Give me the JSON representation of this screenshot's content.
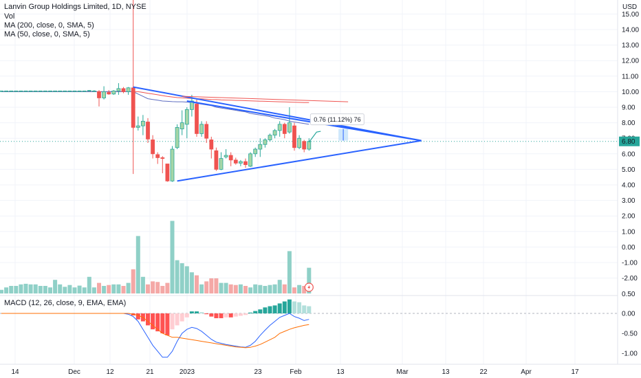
{
  "legend": {
    "title": "Lanvin Group Holdings Limited, 1D, NYSE",
    "vol": "Vol",
    "ma200": "MA (200, close, 0, SMA, 5)",
    "ma50": "MA (50, close, 0, SMA, 5)",
    "macd": "MACD (12, 26, close, 9, EMA, EMA)"
  },
  "price_axis": {
    "currency": "USD",
    "ticks": [
      "15.00",
      "14.00",
      "13.00",
      "12.00",
      "11.00",
      "10.00",
      "9.00",
      "8.00",
      "7.00",
      "6.00",
      "5.00",
      "4.00",
      "3.00",
      "2.00",
      "1.00",
      "0.00",
      "-1.00",
      "-2.00"
    ],
    "last_price": "6.80",
    "last_price_color": "#26a69a"
  },
  "volume_axis_edge_label": "0.50",
  "macd_axis": {
    "ticks": [
      "0.00",
      "-0.50",
      "-1.00"
    ]
  },
  "time_axis": {
    "labels": [
      "14",
      "Dec",
      "12",
      "21",
      "2023",
      "23",
      "Feb",
      "13",
      "Mar",
      "13",
      "22",
      "Apr",
      "17"
    ]
  },
  "measure_label": "0.76 (11.12%) 76",
  "colors": {
    "up": "#26a69a",
    "down": "#ef5350",
    "trendline": "#2962ff",
    "ma200": "#ef5350",
    "ma50": "#5c6bc0",
    "macd_line": "#2962ff",
    "signal_line": "#ff6d00"
  },
  "icons": {
    "flash_event": "lightning-icon"
  },
  "chart_data": {
    "type": "candlestick",
    "ylim": [
      -2,
      15
    ],
    "candles": [
      {
        "o": 10.05,
        "h": 10.05,
        "l": 10.0,
        "c": 10.05
      },
      {
        "o": 10.05,
        "h": 10.05,
        "l": 10.0,
        "c": 10.05
      },
      {
        "o": 10.05,
        "h": 10.05,
        "l": 10.0,
        "c": 10.05
      },
      {
        "o": 10.05,
        "h": 10.05,
        "l": 10.0,
        "c": 10.05
      },
      {
        "o": 10.05,
        "h": 10.05,
        "l": 10.0,
        "c": 10.05
      },
      {
        "o": 10.05,
        "h": 10.05,
        "l": 10.0,
        "c": 10.05
      },
      {
        "o": 10.05,
        "h": 10.05,
        "l": 10.0,
        "c": 10.05
      },
      {
        "o": 10.05,
        "h": 10.05,
        "l": 10.0,
        "c": 10.05
      },
      {
        "o": 10.05,
        "h": 10.05,
        "l": 10.0,
        "c": 10.05
      },
      {
        "o": 10.05,
        "h": 10.05,
        "l": 10.0,
        "c": 10.05
      },
      {
        "o": 10.05,
        "h": 10.05,
        "l": 10.0,
        "c": 10.05
      },
      {
        "o": 10.05,
        "h": 10.05,
        "l": 10.0,
        "c": 10.05
      },
      {
        "o": 10.05,
        "h": 10.05,
        "l": 10.0,
        "c": 10.05
      },
      {
        "o": 10.05,
        "h": 10.05,
        "l": 10.0,
        "c": 10.05
      },
      {
        "o": 10.05,
        "h": 10.05,
        "l": 10.0,
        "c": 10.05
      },
      {
        "o": 10.05,
        "h": 10.05,
        "l": 10.0,
        "c": 10.05
      },
      {
        "o": 10.05,
        "h": 10.05,
        "l": 10.0,
        "c": 10.05
      },
      {
        "o": 10.05,
        "h": 10.05,
        "l": 10.0,
        "c": 10.05
      },
      {
        "o": 10.05,
        "h": 10.1,
        "l": 10.0,
        "c": 10.08
      },
      {
        "o": 10.05,
        "h": 10.1,
        "l": 10.0,
        "c": 10.05
      },
      {
        "o": 10.0,
        "h": 10.1,
        "l": 9.05,
        "c": 9.6
      },
      {
        "o": 9.6,
        "h": 10.35,
        "l": 9.5,
        "c": 10.0
      },
      {
        "o": 9.95,
        "h": 10.1,
        "l": 9.8,
        "c": 9.85
      },
      {
        "o": 9.85,
        "h": 10.1,
        "l": 9.8,
        "c": 10.05
      },
      {
        "o": 10.05,
        "h": 10.55,
        "l": 9.8,
        "c": 10.2
      },
      {
        "o": 10.2,
        "h": 10.3,
        "l": 9.9,
        "c": 10.0
      },
      {
        "o": 10.0,
        "h": 10.3,
        "l": 9.8,
        "c": 10.25
      },
      {
        "o": 10.25,
        "h": 10.3,
        "l": 7.6,
        "c": 7.7
      },
      {
        "o": 7.7,
        "h": 8.4,
        "l": 7.5,
        "c": 7.8
      },
      {
        "o": 7.8,
        "h": 8.5,
        "l": 7.2,
        "c": 8.1
      },
      {
        "o": 8.05,
        "h": 8.3,
        "l": 6.7,
        "c": 6.95
      },
      {
        "o": 6.9,
        "h": 7.2,
        "l": 5.7,
        "c": 6.0
      },
      {
        "o": 5.95,
        "h": 6.1,
        "l": 5.35,
        "c": 5.75
      },
      {
        "o": 5.75,
        "h": 5.85,
        "l": 4.75,
        "c": 5.7
      },
      {
        "o": 5.35,
        "h": 5.35,
        "l": 4.2,
        "c": 4.25
      },
      {
        "o": 4.25,
        "h": 6.5,
        "l": 4.2,
        "c": 6.3
      },
      {
        "o": 6.4,
        "h": 7.9,
        "l": 6.3,
        "c": 7.7
      },
      {
        "o": 7.6,
        "h": 8.8,
        "l": 7.2,
        "c": 8.0
      },
      {
        "o": 7.9,
        "h": 9.0,
        "l": 7.0,
        "c": 8.85
      },
      {
        "o": 8.85,
        "h": 9.8,
        "l": 8.4,
        "c": 9.4
      },
      {
        "o": 9.2,
        "h": 9.5,
        "l": 7.1,
        "c": 7.3
      },
      {
        "o": 7.3,
        "h": 8.1,
        "l": 7.1,
        "c": 7.9
      },
      {
        "o": 7.9,
        "h": 8.1,
        "l": 6.7,
        "c": 7.0
      },
      {
        "o": 6.9,
        "h": 7.1,
        "l": 5.7,
        "c": 6.3
      },
      {
        "o": 6.2,
        "h": 6.4,
        "l": 4.9,
        "c": 5.0
      },
      {
        "o": 5.0,
        "h": 6.1,
        "l": 4.95,
        "c": 5.7
      },
      {
        "o": 5.8,
        "h": 6.3,
        "l": 5.7,
        "c": 5.9
      },
      {
        "o": 5.9,
        "h": 6.1,
        "l": 5.2,
        "c": 5.6
      },
      {
        "o": 5.6,
        "h": 5.75,
        "l": 5.3,
        "c": 5.4
      },
      {
        "o": 5.4,
        "h": 5.6,
        "l": 5.2,
        "c": 5.5
      },
      {
        "o": 5.5,
        "h": 5.7,
        "l": 5.1,
        "c": 5.3
      },
      {
        "o": 5.2,
        "h": 6.1,
        "l": 5.15,
        "c": 6.0
      },
      {
        "o": 6.0,
        "h": 6.4,
        "l": 5.8,
        "c": 6.3
      },
      {
        "o": 6.3,
        "h": 7.0,
        "l": 5.8,
        "c": 6.6
      },
      {
        "o": 6.6,
        "h": 7.0,
        "l": 6.4,
        "c": 6.9
      },
      {
        "o": 6.9,
        "h": 7.3,
        "l": 6.8,
        "c": 7.2
      },
      {
        "o": 7.2,
        "h": 7.6,
        "l": 7.0,
        "c": 7.5
      },
      {
        "o": 7.5,
        "h": 8.1,
        "l": 7.1,
        "c": 7.9
      },
      {
        "o": 7.9,
        "h": 8.0,
        "l": 7.0,
        "c": 7.3
      },
      {
        "o": 7.4,
        "h": 9.0,
        "l": 7.3,
        "c": 8.0
      },
      {
        "o": 7.8,
        "h": 8.0,
        "l": 6.2,
        "c": 6.4
      },
      {
        "o": 6.4,
        "h": 7.2,
        "l": 6.3,
        "c": 7.0
      },
      {
        "o": 6.8,
        "h": 6.9,
        "l": 6.1,
        "c": 6.3
      },
      {
        "o": 6.3,
        "h": 7.0,
        "l": 6.2,
        "c": 6.8
      }
    ],
    "volume": [
      0.12,
      0.2,
      0.25,
      0.25,
      0.3,
      0.32,
      0.3,
      0.3,
      0.25,
      0.25,
      0.2,
      0.45,
      0.3,
      0.22,
      0.28,
      0.2,
      0.26,
      0.2,
      0.55,
      0.2,
      0.35,
      0.25,
      0.28,
      0.3,
      0.3,
      0.25,
      0.35,
      0.8,
      1.9,
      0.55,
      0.3,
      0.4,
      0.38,
      0.25,
      0.35,
      2.4,
      1.1,
      1.0,
      0.9,
      0.7,
      0.6,
      0.3,
      0.4,
      0.5,
      0.5,
      0.35,
      0.35,
      0.3,
      0.28,
      0.3,
      0.25,
      0.2,
      0.3,
      0.28,
      0.25,
      0.28,
      0.3,
      0.45,
      0.3,
      1.4,
      0.2,
      0.28,
      0.25,
      0.85
    ],
    "ma200": [
      10.0,
      10.0,
      10.0,
      10.0,
      10.0,
      10.0,
      10.0,
      10.0,
      10.0,
      10.0,
      10.0,
      10.0,
      10.0,
      10.0,
      10.0,
      10.0,
      10.0,
      10.0,
      10.0,
      10.0,
      10.0,
      10.0,
      10.0,
      10.0,
      10.0,
      10.0,
      10.0,
      10.0,
      10.0,
      9.95,
      9.9,
      9.85,
      9.8,
      9.75,
      9.7,
      9.66,
      9.62,
      9.6,
      9.58,
      9.56,
      9.55,
      9.54,
      9.52,
      9.5,
      9.49,
      9.47,
      9.46,
      9.45,
      9.44,
      9.43,
      9.42,
      9.41,
      9.4,
      9.39,
      9.38,
      9.37,
      9.36,
      9.35,
      9.34,
      9.33,
      9.32,
      9.31,
      9.3,
      9.3
    ],
    "ma50": [
      10.0,
      10.0,
      10.0,
      10.0,
      10.0,
      10.0,
      10.0,
      10.0,
      10.0,
      10.0,
      10.0,
      10.0,
      10.0,
      10.0,
      10.0,
      10.0,
      10.0,
      10.0,
      10.0,
      10.0,
      10.0,
      10.0,
      10.0,
      10.0,
      10.0,
      10.0,
      10.0,
      10.0,
      9.85,
      9.7,
      9.55,
      9.5,
      9.45,
      9.4,
      9.38,
      9.36,
      9.35,
      9.35,
      9.33,
      9.3,
      9.25,
      9.2,
      9.15,
      9.1,
      9.0,
      8.95,
      8.9,
      8.85,
      8.8,
      8.75,
      8.7,
      8.6,
      8.55,
      8.5,
      8.45,
      8.4,
      8.3,
      8.25,
      8.2,
      8.1,
      8.05,
      8.0,
      7.95,
      7.9
    ],
    "macd_hist": [
      0,
      0,
      0,
      0,
      0,
      0,
      0,
      0,
      0,
      0,
      0,
      0,
      0,
      0,
      0,
      0,
      0,
      0,
      0,
      0,
      0,
      0,
      0,
      0,
      0,
      0,
      0,
      -0.05,
      -0.15,
      -0.2,
      -0.3,
      -0.4,
      -0.45,
      -0.5,
      -0.55,
      -0.4,
      -0.3,
      -0.2,
      -0.1,
      0.05,
      0.05,
      0.03,
      -0.02,
      -0.08,
      -0.12,
      -0.12,
      -0.1,
      -0.1,
      -0.08,
      -0.06,
      -0.04,
      0.02,
      0.06,
      0.1,
      0.15,
      0.18,
      0.2,
      0.25,
      0.3,
      0.35,
      0.3,
      0.28,
      0.2,
      0.18
    ],
    "macd_line": [
      0,
      0,
      0,
      0,
      0,
      0,
      0,
      0,
      0,
      0,
      0,
      0,
      0,
      0,
      0,
      0,
      0,
      0,
      0,
      0,
      0,
      0,
      0,
      0,
      0,
      0,
      -0.02,
      -0.08,
      -0.2,
      -0.4,
      -0.6,
      -0.8,
      -0.95,
      -1.1,
      -1.1,
      -0.95,
      -0.7,
      -0.5,
      -0.4,
      -0.35,
      -0.38,
      -0.45,
      -0.55,
      -0.65,
      -0.72,
      -0.75,
      -0.78,
      -0.8,
      -0.82,
      -0.84,
      -0.85,
      -0.8,
      -0.7,
      -0.55,
      -0.42,
      -0.3,
      -0.2,
      -0.1,
      -0.05,
      0.0,
      -0.08,
      -0.12,
      -0.18,
      -0.15
    ],
    "signal_line": [
      0,
      0,
      0,
      0,
      0,
      0,
      0,
      0,
      0,
      0,
      0,
      0,
      0,
      0,
      0,
      0,
      0,
      0,
      0,
      0,
      0,
      0,
      0,
      0,
      0,
      0,
      0,
      -0.02,
      -0.05,
      -0.1,
      -0.2,
      -0.3,
      -0.4,
      -0.5,
      -0.55,
      -0.6,
      -0.6,
      -0.62,
      -0.64,
      -0.66,
      -0.68,
      -0.7,
      -0.72,
      -0.74,
      -0.76,
      -0.78,
      -0.8,
      -0.82,
      -0.84,
      -0.85,
      -0.86,
      -0.85,
      -0.82,
      -0.78,
      -0.72,
      -0.66,
      -0.6,
      -0.5,
      -0.45,
      -0.4,
      -0.36,
      -0.33,
      -0.3,
      -0.28
    ],
    "trend_upper": {
      "from": [
        27,
        10.3
      ],
      "to": [
        86,
        6.85
      ]
    },
    "trend_mid": {
      "from": [
        38,
        9.4
      ],
      "to": [
        86,
        6.85
      ]
    },
    "trend_lower": {
      "from": [
        36,
        4.25
      ],
      "to": [
        86,
        6.85
      ]
    },
    "ma_ref_line": {
      "from": [
        37,
        9.7
      ],
      "to": [
        71,
        9.35
      ]
    },
    "measure": {
      "from_index": 63,
      "to_index": 71,
      "from_price": 6.85,
      "to_price": 7.6
    },
    "vertical_marker_index": 27
  }
}
